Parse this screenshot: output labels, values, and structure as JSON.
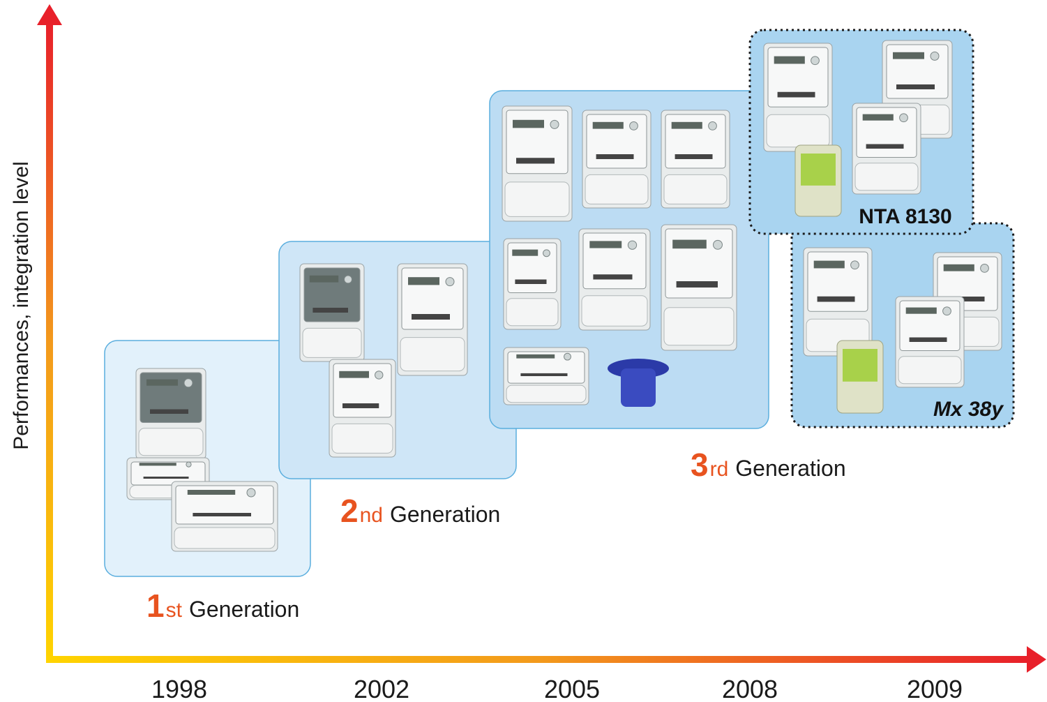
{
  "y_axis": {
    "label": "Performances, integration level"
  },
  "x_axis": {
    "labels": [
      "1998",
      "2002",
      "2005",
      "2008",
      "2009"
    ]
  },
  "generations": [
    {
      "number": "1",
      "suffix": "st",
      "label": "Generation"
    },
    {
      "number": "2",
      "suffix": "nd",
      "label": "Generation"
    },
    {
      "number": "3",
      "suffix": "rd",
      "label": "Generation"
    }
  ],
  "groups": [
    {
      "label": "NTA 8130"
    },
    {
      "label": "Mx 38y"
    }
  ]
}
